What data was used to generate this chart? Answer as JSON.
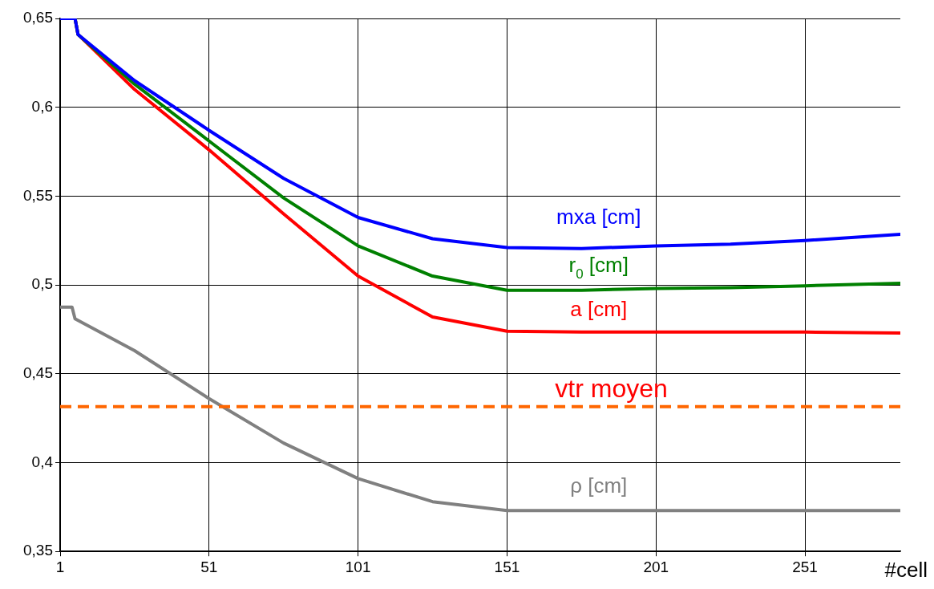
{
  "chart_data": {
    "type": "line",
    "xlabel": "#cell",
    "xlim": [
      1,
      283
    ],
    "xticks": [
      1,
      51,
      101,
      151,
      201,
      251
    ],
    "ylim": [
      0.35,
      0.65
    ],
    "yticks": [
      {
        "value": 0.35,
        "label": "0,35"
      },
      {
        "value": 0.4,
        "label": "0,4"
      },
      {
        "value": 0.45,
        "label": "0,45"
      },
      {
        "value": 0.5,
        "label": "0,5"
      },
      {
        "value": 0.55,
        "label": "0,55"
      },
      {
        "value": 0.6,
        "label": "0,6"
      },
      {
        "value": 0.65,
        "label": "0,65"
      }
    ],
    "grid": true,
    "legend": false,
    "marker": "none",
    "line_style": "solid",
    "series": [
      {
        "name": "mxa [cm]",
        "color": "#0000ff",
        "x": [
          1,
          6,
          7,
          26,
          51,
          76,
          101,
          126,
          151,
          176,
          201,
          226,
          251,
          283
        ],
        "values": [
          0.65,
          0.65,
          0.641,
          0.615,
          0.587,
          0.56,
          0.538,
          0.526,
          0.521,
          0.5205,
          0.522,
          0.523,
          0.525,
          0.5285
        ]
      },
      {
        "name": "r$_{0}$ [cm]",
        "color": "#008000",
        "x": [
          1,
          6,
          7,
          26,
          51,
          76,
          101,
          126,
          151,
          176,
          201,
          226,
          251,
          283
        ],
        "values": [
          0.65,
          0.65,
          0.641,
          0.613,
          0.581,
          0.549,
          0.522,
          0.505,
          0.497,
          0.497,
          0.498,
          0.4985,
          0.4995,
          0.501
        ]
      },
      {
        "name": "a [cm]",
        "color": "#ff0000",
        "x": [
          1,
          6,
          7,
          26,
          51,
          76,
          101,
          126,
          151,
          176,
          201,
          251,
          283
        ],
        "values": [
          0.65,
          0.65,
          0.641,
          0.61,
          0.576,
          0.54,
          0.505,
          0.482,
          0.474,
          0.4735,
          0.4735,
          0.4735,
          0.473
        ]
      },
      {
        "name": "ρ [cm]",
        "color": "#808080",
        "x": [
          1,
          5,
          6,
          26,
          51,
          76,
          101,
          126,
          151,
          201,
          283
        ],
        "values": [
          0.4875,
          0.4875,
          0.481,
          0.463,
          0.436,
          0.411,
          0.391,
          0.378,
          0.373,
          0.373,
          0.373
        ]
      }
    ],
    "ref_lines": [
      {
        "axis": "y",
        "value": 0.4315,
        "label": "vtr moyen",
        "color": "#ff6600",
        "line_style": "dashed"
      }
    ]
  }
}
